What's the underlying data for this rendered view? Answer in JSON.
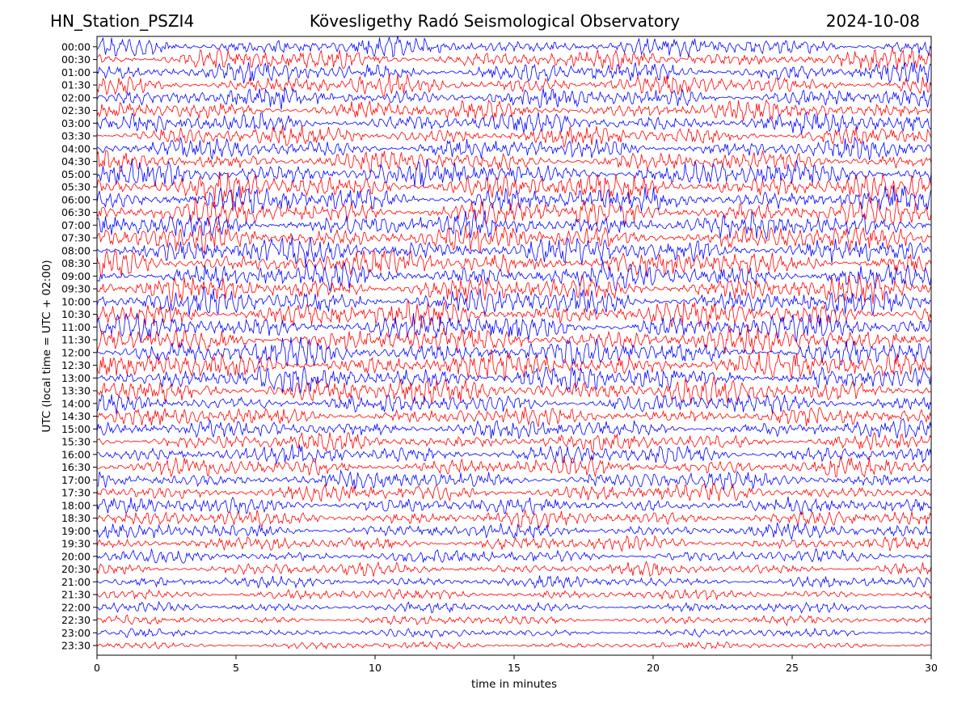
{
  "header": {
    "station": "HN_Station_PSZI4",
    "observatory": "Kövesligethy Radó Seismological Observatory",
    "date": "2024-10-08"
  },
  "chart_data": {
    "type": "line",
    "chart_kind": "helicorder seismogram",
    "xlabel": "time in minutes",
    "ylabel": "UTC (local time = UTC + 02:00)",
    "xlim": [
      0,
      30
    ],
    "x_ticks": [
      "0",
      "5",
      "10",
      "15",
      "20",
      "25",
      "30"
    ],
    "y_ticks": [
      "00:00",
      "00:30",
      "01:00",
      "01:30",
      "02:00",
      "02:30",
      "03:00",
      "03:30",
      "04:00",
      "04:30",
      "05:00",
      "05:30",
      "06:00",
      "06:30",
      "07:00",
      "07:30",
      "08:00",
      "08:30",
      "09:00",
      "09:30",
      "10:00",
      "10:30",
      "11:00",
      "11:30",
      "12:00",
      "12:30",
      "13:00",
      "13:30",
      "14:00",
      "14:30",
      "15:00",
      "15:30",
      "16:00",
      "16:30",
      "17:00",
      "17:30",
      "18:00",
      "18:30",
      "19:00",
      "19:30",
      "20:00",
      "20:30",
      "21:00",
      "21:30",
      "22:00",
      "22:30",
      "23:00",
      "23:30"
    ],
    "trace_colors": [
      "#0000ff",
      "#ff0000"
    ],
    "color_pattern": "alternating (blue, red)",
    "grid": false
  }
}
